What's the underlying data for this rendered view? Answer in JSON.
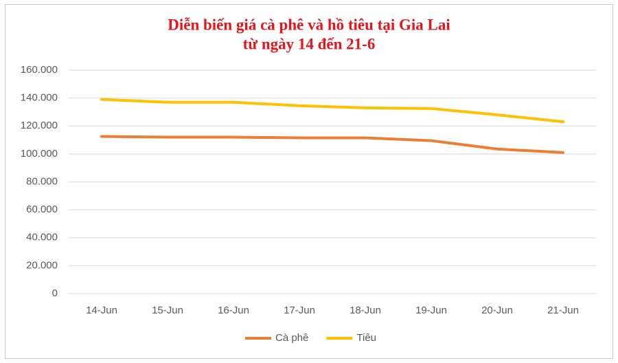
{
  "chart_data": {
    "type": "line",
    "title": "Diễn biến giá cà phê và hồ tiêu tại Gia Lai",
    "subtitle": "từ ngày 14 đến 21-6",
    "categories": [
      "14-Jun",
      "15-Jun",
      "16-Jun",
      "17-Jun",
      "18-Jun",
      "19-Jun",
      "20-Jun",
      "21-Jun"
    ],
    "series": [
      {
        "name": "Cà phê",
        "color": "#ed7d31",
        "values": [
          112500,
          112000,
          112000,
          111500,
          111500,
          109500,
          103500,
          101000
        ]
      },
      {
        "name": "Tiêu",
        "color": "#ffc000",
        "values": [
          139000,
          137000,
          137000,
          134500,
          133000,
          132500,
          128000,
          123000
        ]
      }
    ],
    "ylim": [
      0,
      160000
    ],
    "yticks": [
      0,
      {
        "value": 20000,
        "label": "20.000"
      },
      {
        "value": 40000,
        "label": "40.000"
      },
      {
        "value": 60000,
        "label": "60.000"
      },
      {
        "value": 80000,
        "label": "80.000"
      },
      {
        "value": 100000,
        "label": "100.000"
      },
      {
        "value": 120000,
        "label": "120.000"
      },
      {
        "value": 140000,
        "label": "140.000"
      },
      {
        "value": 160000,
        "label": "160.000"
      }
    ],
    "grid": true,
    "legend": "bottom"
  }
}
